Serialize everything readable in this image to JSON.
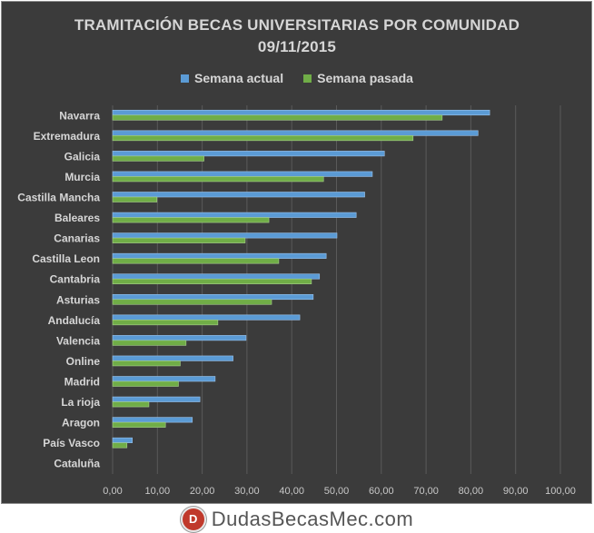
{
  "chart_data": {
    "type": "bar",
    "orientation": "horizontal",
    "title": "TRAMITACIÓN BECAS UNIVERSITARIAS POR COMUNIDAD",
    "subtitle": "09/11/2015",
    "categories": [
      "Navarra",
      "Extremadura",
      "Galicia",
      "Murcia",
      "Castilla Mancha",
      "Baleares",
      "Canarias",
      "Castilla Leon",
      "Cantabria",
      "Asturias",
      "Andalucía",
      "Valencia",
      "Online",
      "Madrid",
      "La rioja",
      "Aragon",
      "País Vasco",
      "Cataluña"
    ],
    "series": [
      {
        "name": "Semana actual",
        "color": "#5b9bd5",
        "values": [
          84.2,
          81.6,
          60.7,
          58.0,
          56.3,
          54.4,
          50.1,
          47.7,
          46.2,
          44.8,
          41.8,
          29.8,
          26.9,
          22.9,
          19.5,
          17.8,
          4.4,
          0
        ]
      },
      {
        "name": "Semana pasada",
        "color": "#70ad47",
        "values": [
          73.6,
          67.1,
          20.4,
          47.1,
          9.9,
          34.9,
          29.6,
          37.1,
          44.4,
          35.5,
          23.5,
          16.4,
          15.1,
          14.7,
          8.1,
          11.8,
          3.2,
          0
        ]
      }
    ],
    "xlim": [
      0,
      100
    ],
    "xticks": [
      "0,00",
      "10,00",
      "20,00",
      "30,00",
      "40,00",
      "50,00",
      "60,00",
      "70,00",
      "80,00",
      "90,00",
      "100,00"
    ],
    "grid": true,
    "legend_position": "top"
  },
  "footer": {
    "brand": "DudasBecasMec.com",
    "logo_letter": "D"
  }
}
